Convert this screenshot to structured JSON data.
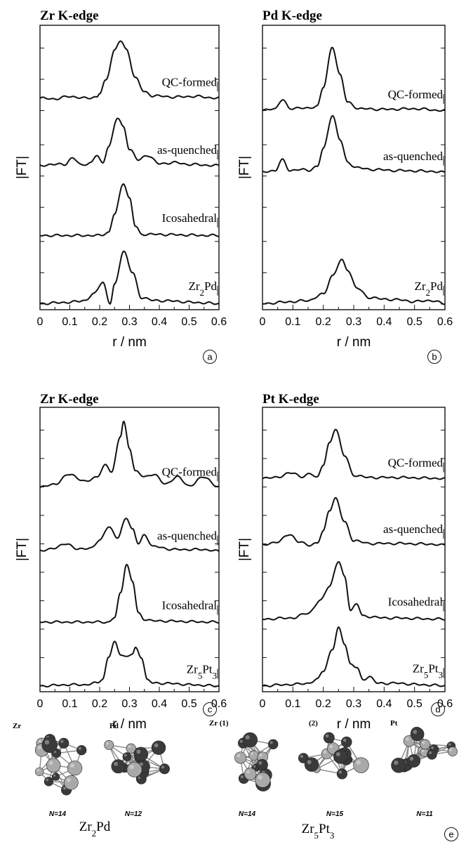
{
  "figure": {
    "ylabel": "|FT|",
    "xlabel": "r  / nm",
    "xticks": [
      "0",
      "0.1",
      "0.2",
      "0.3",
      "0.4",
      "0.5",
      "0.6"
    ]
  },
  "chart_data": [
    {
      "type": "line",
      "title": "Zr K-edge",
      "panel_label": "a",
      "xlabel": "r  / nm",
      "ylabel": "|FT|",
      "xlim": [
        0,
        0.6
      ],
      "series": [
        {
          "name": "QC-formed",
          "offset": 3.4,
          "baseline": [
            [
              0,
              0.02
            ],
            [
              0.05,
              0.01
            ],
            [
              0.1,
              0.05
            ],
            [
              0.15,
              0.02
            ],
            [
              0.19,
              0.04
            ],
            [
              0.2,
              0.1
            ],
            [
              0.22,
              0.3
            ],
            [
              0.25,
              0.8
            ],
            [
              0.27,
              0.95
            ],
            [
              0.29,
              0.8
            ],
            [
              0.32,
              0.35
            ],
            [
              0.35,
              0.12
            ],
            [
              0.38,
              0.06
            ],
            [
              0.45,
              0.04
            ],
            [
              0.52,
              0.05
            ],
            [
              0.6,
              0.02
            ]
          ]
        },
        {
          "name": "as-quenched",
          "offset": 2.3,
          "baseline": [
            [
              0,
              0.02
            ],
            [
              0.05,
              0.06
            ],
            [
              0.08,
              0.04
            ],
            [
              0.11,
              0.16
            ],
            [
              0.14,
              0.03
            ],
            [
              0.17,
              0.08
            ],
            [
              0.19,
              0.2
            ],
            [
              0.21,
              0.06
            ],
            [
              0.23,
              0.35
            ],
            [
              0.26,
              0.8
            ],
            [
              0.28,
              0.65
            ],
            [
              0.3,
              0.3
            ],
            [
              0.33,
              0.12
            ],
            [
              0.36,
              0.2
            ],
            [
              0.4,
              0.06
            ],
            [
              0.45,
              0.08
            ],
            [
              0.5,
              0.05
            ],
            [
              0.6,
              0.03
            ]
          ]
        },
        {
          "name": "Icosahedral",
          "offset": 1.2,
          "baseline": [
            [
              0,
              0
            ],
            [
              0.2,
              0
            ],
            [
              0.23,
              0.05
            ],
            [
              0.25,
              0.35
            ],
            [
              0.28,
              0.85
            ],
            [
              0.3,
              0.6
            ],
            [
              0.32,
              0.15
            ],
            [
              0.34,
              0.02
            ],
            [
              0.6,
              0
            ]
          ]
        },
        {
          "name": "Zr<sub>2</sub>Pd",
          "offset": 0.1,
          "baseline": [
            [
              0,
              0
            ],
            [
              0.1,
              0.02
            ],
            [
              0.15,
              0.05
            ],
            [
              0.18,
              0.15
            ],
            [
              0.21,
              0.35
            ],
            [
              0.235,
              0.0
            ],
            [
              0.25,
              0.3
            ],
            [
              0.28,
              0.85
            ],
            [
              0.31,
              0.5
            ],
            [
              0.34,
              0.1
            ],
            [
              0.38,
              0.05
            ],
            [
              0.45,
              0.04
            ],
            [
              0.5,
              0.02
            ],
            [
              0.6,
              0.0
            ]
          ]
        }
      ]
    },
    {
      "type": "line",
      "title": "Pd K-edge",
      "panel_label": "b",
      "xlabel": "r  / nm",
      "ylabel": "|FT|",
      "xlim": [
        0,
        0.6
      ],
      "series": [
        {
          "name": "QC-formed",
          "offset": 3.2,
          "baseline": [
            [
              0,
              0.02
            ],
            [
              0.04,
              0.05
            ],
            [
              0.065,
              0.2
            ],
            [
              0.09,
              0.05
            ],
            [
              0.12,
              0.07
            ],
            [
              0.15,
              0.05
            ],
            [
              0.18,
              0.1
            ],
            [
              0.2,
              0.4
            ],
            [
              0.23,
              1.05
            ],
            [
              0.255,
              0.6
            ],
            [
              0.28,
              0.15
            ],
            [
              0.32,
              0.05
            ],
            [
              0.4,
              0.04
            ],
            [
              0.5,
              0.05
            ],
            [
              0.6,
              0.02
            ]
          ]
        },
        {
          "name": "as-quenched",
          "offset": 2.2,
          "baseline": [
            [
              0,
              0.02
            ],
            [
              0.04,
              0.05
            ],
            [
              0.065,
              0.22
            ],
            [
              0.09,
              0.05
            ],
            [
              0.12,
              0.07
            ],
            [
              0.15,
              0.05
            ],
            [
              0.18,
              0.12
            ],
            [
              0.2,
              0.4
            ],
            [
              0.23,
              0.95
            ],
            [
              0.255,
              0.55
            ],
            [
              0.28,
              0.18
            ],
            [
              0.31,
              0.1
            ],
            [
              0.35,
              0.07
            ],
            [
              0.45,
              0.05
            ],
            [
              0.55,
              0.04
            ],
            [
              0.6,
              0.02
            ]
          ]
        },
        {
          "name": "Zr<sub>2</sub>Pd",
          "offset": 0.1,
          "baseline": [
            [
              0,
              0
            ],
            [
              0.1,
              0.03
            ],
            [
              0.15,
              0.05
            ],
            [
              0.2,
              0.15
            ],
            [
              0.23,
              0.45
            ],
            [
              0.26,
              0.7
            ],
            [
              0.28,
              0.55
            ],
            [
              0.31,
              0.25
            ],
            [
              0.35,
              0.1
            ],
            [
              0.4,
              0.07
            ],
            [
              0.45,
              0.06
            ],
            [
              0.5,
              0.03
            ],
            [
              0.55,
              0.05
            ],
            [
              0.6,
              0.0
            ]
          ]
        }
      ]
    },
    {
      "type": "line",
      "title": "Zr K-edge",
      "panel_label": "c",
      "xlabel": "r  / nm",
      "ylabel": "|FT|",
      "xlim": [
        0,
        0.6
      ],
      "series": [
        {
          "name": "QC-formed",
          "offset": 3.5,
          "baseline": [
            [
              0,
              0.02
            ],
            [
              0.05,
              0.08
            ],
            [
              0.1,
              0.25
            ],
            [
              0.15,
              0.12
            ],
            [
              0.19,
              0.2
            ],
            [
              0.22,
              0.4
            ],
            [
              0.24,
              0.3
            ],
            [
              0.27,
              0.9
            ],
            [
              0.28,
              1.15
            ],
            [
              0.3,
              0.7
            ],
            [
              0.32,
              0.3
            ],
            [
              0.35,
              0.2
            ],
            [
              0.38,
              0.25
            ],
            [
              0.42,
              0.08
            ],
            [
              0.46,
              0.2
            ],
            [
              0.5,
              0.05
            ],
            [
              0.55,
              0.2
            ],
            [
              0.6,
              0.02
            ]
          ]
        },
        {
          "name": "as-quenched",
          "offset": 2.4,
          "baseline": [
            [
              0,
              0.02
            ],
            [
              0.05,
              0.08
            ],
            [
              0.09,
              0.15
            ],
            [
              0.13,
              0.05
            ],
            [
              0.17,
              0.08
            ],
            [
              0.2,
              0.2
            ],
            [
              0.23,
              0.45
            ],
            [
              0.26,
              0.25
            ],
            [
              0.29,
              0.6
            ],
            [
              0.31,
              0.4
            ],
            [
              0.33,
              0.15
            ],
            [
              0.35,
              0.3
            ],
            [
              0.38,
              0.1
            ],
            [
              0.45,
              0.05
            ],
            [
              0.55,
              0.05
            ],
            [
              0.6,
              0.02
            ]
          ]
        },
        {
          "name": "Icosahedral",
          "offset": 1.2,
          "baseline": [
            [
              0,
              0
            ],
            [
              0.23,
              0
            ],
            [
              0.25,
              0.08
            ],
            [
              0.27,
              0.5
            ],
            [
              0.29,
              1.0
            ],
            [
              0.31,
              0.7
            ],
            [
              0.33,
              0.15
            ],
            [
              0.35,
              0.05
            ],
            [
              0.38,
              0.02
            ],
            [
              0.6,
              0
            ]
          ]
        },
        {
          "name": "Zr<sub>5</sub>Pt<sub>3</sub>",
          "offset": 0.1,
          "baseline": [
            [
              0,
              0
            ],
            [
              0.1,
              0.02
            ],
            [
              0.15,
              0.02
            ],
            [
              0.19,
              0.05
            ],
            [
              0.21,
              0.12
            ],
            [
              0.23,
              0.5
            ],
            [
              0.25,
              0.75
            ],
            [
              0.27,
              0.55
            ],
            [
              0.29,
              0.5
            ],
            [
              0.31,
              0.55
            ],
            [
              0.32,
              0.65
            ],
            [
              0.34,
              0.5
            ],
            [
              0.36,
              0.1
            ],
            [
              0.38,
              0.05
            ],
            [
              0.45,
              0.04
            ],
            [
              0.5,
              0.02
            ],
            [
              0.6,
              0.0
            ]
          ]
        }
      ]
    },
    {
      "type": "line",
      "title": "Pt K-edge",
      "panel_label": "d",
      "xlabel": "r  / nm",
      "ylabel": "|FT|",
      "xlim": [
        0,
        0.6
      ],
      "series": [
        {
          "name": "QC-formed",
          "offset": 3.5,
          "baseline": [
            [
              0,
              0.02
            ],
            [
              0.05,
              0.05
            ],
            [
              0.1,
              0.12
            ],
            [
              0.13,
              0.05
            ],
            [
              0.16,
              0.1
            ],
            [
              0.18,
              0.05
            ],
            [
              0.2,
              0.25
            ],
            [
              0.22,
              0.6
            ],
            [
              0.24,
              0.85
            ],
            [
              0.27,
              0.4
            ],
            [
              0.3,
              0.08
            ],
            [
              0.35,
              0.04
            ],
            [
              0.45,
              0.04
            ],
            [
              0.55,
              0.03
            ],
            [
              0.6,
              0.02
            ]
          ]
        },
        {
          "name": "as-quenched",
          "offset": 2.4,
          "baseline": [
            [
              0,
              0.02
            ],
            [
              0.05,
              0.08
            ],
            [
              0.09,
              0.2
            ],
            [
              0.12,
              0.08
            ],
            [
              0.15,
              0.02
            ],
            [
              0.18,
              0.06
            ],
            [
              0.2,
              0.25
            ],
            [
              0.22,
              0.6
            ],
            [
              0.24,
              0.8
            ],
            [
              0.27,
              0.4
            ],
            [
              0.3,
              0.1
            ],
            [
              0.35,
              0.05
            ],
            [
              0.45,
              0.05
            ],
            [
              0.55,
              0.04
            ],
            [
              0.6,
              0.02
            ]
          ]
        },
        {
          "name": "Icosahedral",
          "offset": 1.2,
          "baseline": [
            [
              0,
              0
            ],
            [
              0.1,
              0.02
            ],
            [
              0.15,
              0.1
            ],
            [
              0.19,
              0.3
            ],
            [
              0.22,
              0.55
            ],
            [
              0.25,
              0.95
            ],
            [
              0.27,
              0.7
            ],
            [
              0.29,
              0.15
            ],
            [
              0.31,
              0.25
            ],
            [
              0.33,
              0.05
            ],
            [
              0.4,
              0.02
            ],
            [
              0.6,
              0
            ]
          ]
        },
        {
          "name": "Zr<sub>5</sub>Pt<sub>3</sub>",
          "offset": 0.1,
          "baseline": [
            [
              0,
              0
            ],
            [
              0.1,
              0.02
            ],
            [
              0.15,
              0.04
            ],
            [
              0.18,
              0.1
            ],
            [
              0.2,
              0.25
            ],
            [
              0.23,
              0.6
            ],
            [
              0.25,
              0.95
            ],
            [
              0.27,
              0.7
            ],
            [
              0.29,
              0.35
            ],
            [
              0.31,
              0.3
            ],
            [
              0.33,
              0.1
            ],
            [
              0.35,
              0.15
            ],
            [
              0.38,
              0.04
            ],
            [
              0.45,
              0.04
            ],
            [
              0.5,
              0.02
            ],
            [
              0.6,
              0.0
            ]
          ]
        }
      ]
    }
  ],
  "clusters": {
    "panel_label": "e",
    "groups": [
      {
        "compound": "Zr<sub>2</sub>Pd",
        "items": [
          {
            "label": "Zr",
            "n": "N=14"
          },
          {
            "label": "Pd",
            "n": "N=12"
          }
        ]
      },
      {
        "compound": "Zr<sub>5</sub>Pt<sub>3</sub>",
        "items": [
          {
            "label": "Zr (1)",
            "n": "N=14"
          },
          {
            "label": "(2)",
            "n": "N=15"
          },
          {
            "label": "Pt",
            "n": "N=11"
          }
        ]
      }
    ]
  }
}
